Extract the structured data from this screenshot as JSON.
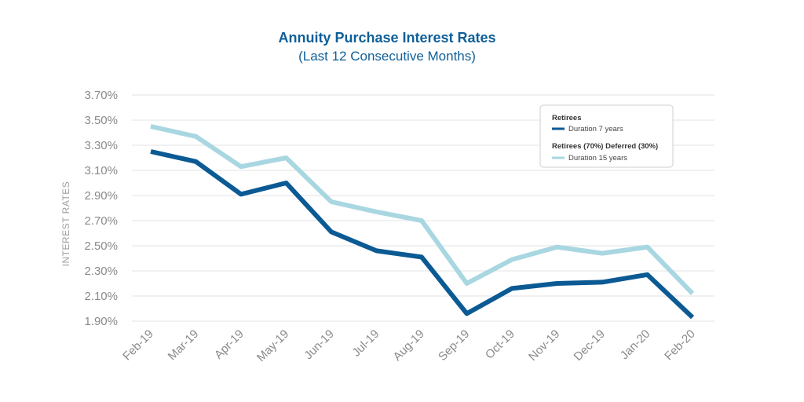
{
  "chart_data": {
    "type": "line",
    "title": "Annuity Purchase Interest Rates",
    "subtitle": "(Last 12 Consecutive Months)",
    "ylabel": "INTEREST RATES",
    "xlabel": "",
    "categories": [
      "Feb-19",
      "Mar-19",
      "Apr-19",
      "May-19",
      "Jun-19",
      "Jul-19",
      "Aug-19",
      "Sep-19",
      "Oct-19",
      "Nov-19",
      "Dec-19",
      "Jan-20",
      "Feb-20"
    ],
    "yticks": [
      "3.70%",
      "3.50%",
      "3.30%",
      "3.10%",
      "2.90%",
      "2.70%",
      "2.50%",
      "2.30%",
      "2.10%",
      "1.90%"
    ],
    "ylim": [
      1.9,
      3.7
    ],
    "grid": true,
    "legend_position": "top-right",
    "series": [
      {
        "group": "Retirees",
        "name": "Duration 7 years",
        "color": "#0b5a94",
        "values": [
          3.25,
          3.17,
          2.91,
          3.0,
          2.61,
          2.46,
          2.41,
          1.96,
          2.16,
          2.2,
          2.21,
          2.27,
          1.93
        ]
      },
      {
        "group": "Retirees (70%) Deferred (30%)",
        "name": "Duration 15 years",
        "color": "#a9d7e1",
        "values": [
          3.45,
          3.37,
          3.13,
          3.2,
          2.85,
          2.77,
          2.7,
          2.2,
          2.39,
          2.49,
          2.44,
          2.49,
          2.12
        ]
      }
    ]
  }
}
